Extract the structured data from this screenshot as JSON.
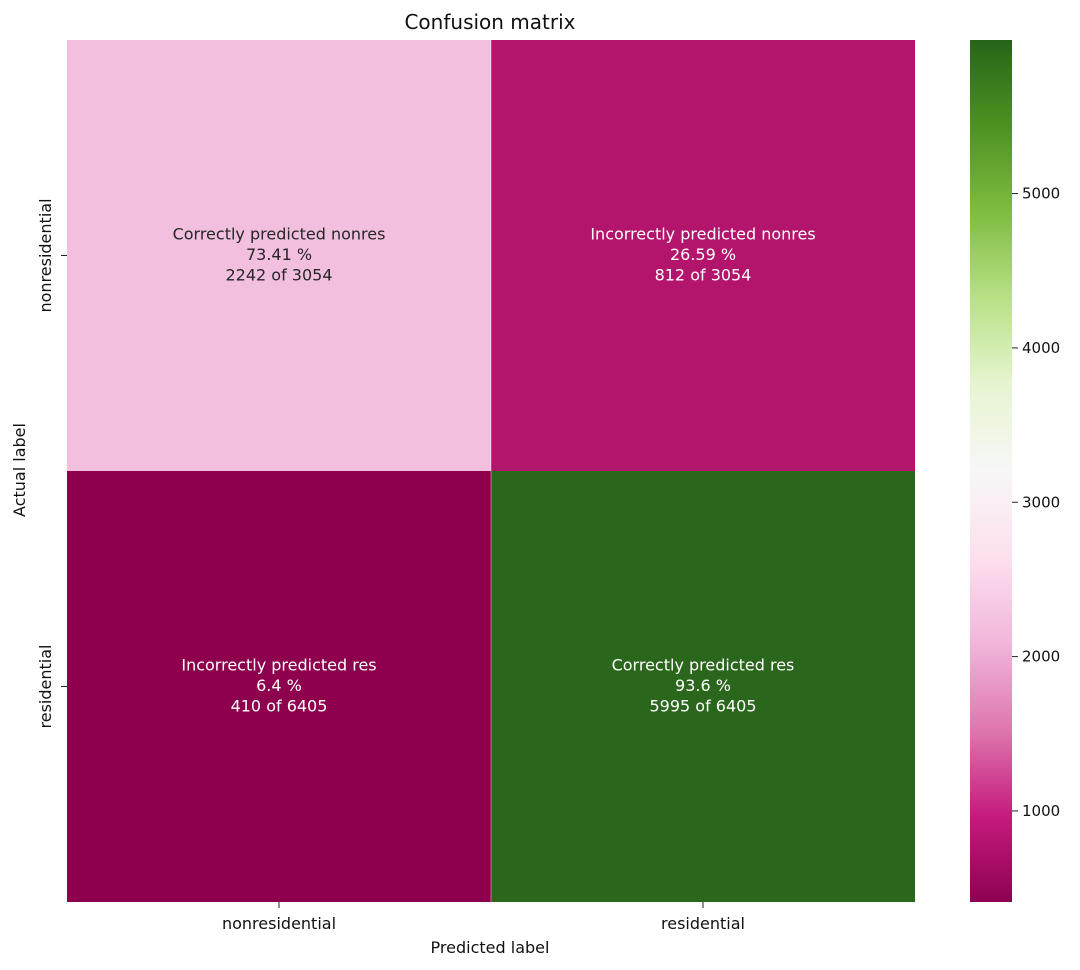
{
  "chart_data": {
    "type": "heatmap",
    "title": "Confusion matrix",
    "xlabel": "Predicted label",
    "ylabel": "Actual label",
    "x_categories": [
      "nonresidential",
      "residential"
    ],
    "y_categories": [
      "nonresidential",
      "residential"
    ],
    "values": [
      [
        2242,
        812
      ],
      [
        410,
        5995
      ]
    ],
    "cell_annotations": [
      [
        {
          "line1": "Correctly predicted nonres",
          "line2": "73.41 %",
          "line3": "2242 of 3054"
        },
        {
          "line1": "Incorrectly predicted nonres",
          "line2": "26.59 %",
          "line3": "812 of 3054"
        }
      ],
      [
        {
          "line1": "Incorrectly predicted res",
          "line2": "6.4 %",
          "line3": "410 of 6405"
        },
        {
          "line1": "Correctly predicted res",
          "line2": "93.6 %",
          "line3": "5995 of 6405"
        }
      ]
    ],
    "colormap": "PiYG",
    "colorbar": {
      "range": [
        410,
        5995
      ],
      "ticks": [
        1000,
        2000,
        3000,
        4000,
        5000
      ],
      "tick_labels": [
        "1000",
        "2000",
        "3000",
        "4000",
        "5000"
      ]
    },
    "colormap_stops": [
      "#8e0152",
      "#c51b7d",
      "#de77ae",
      "#f1b6da",
      "#fde0ef",
      "#f7f7f7",
      "#e6f5d0",
      "#b8e186",
      "#7fbc41",
      "#4d9221",
      "#276419"
    ],
    "cell_colors": [
      [
        "#f2bfdf",
        "#b3146c"
      ],
      [
        "#8e004d",
        "#2a661b"
      ]
    ],
    "cell_text_colors": [
      [
        "#262626",
        "#ffffff"
      ],
      [
        "#ffffff",
        "#ffffff"
      ]
    ]
  }
}
